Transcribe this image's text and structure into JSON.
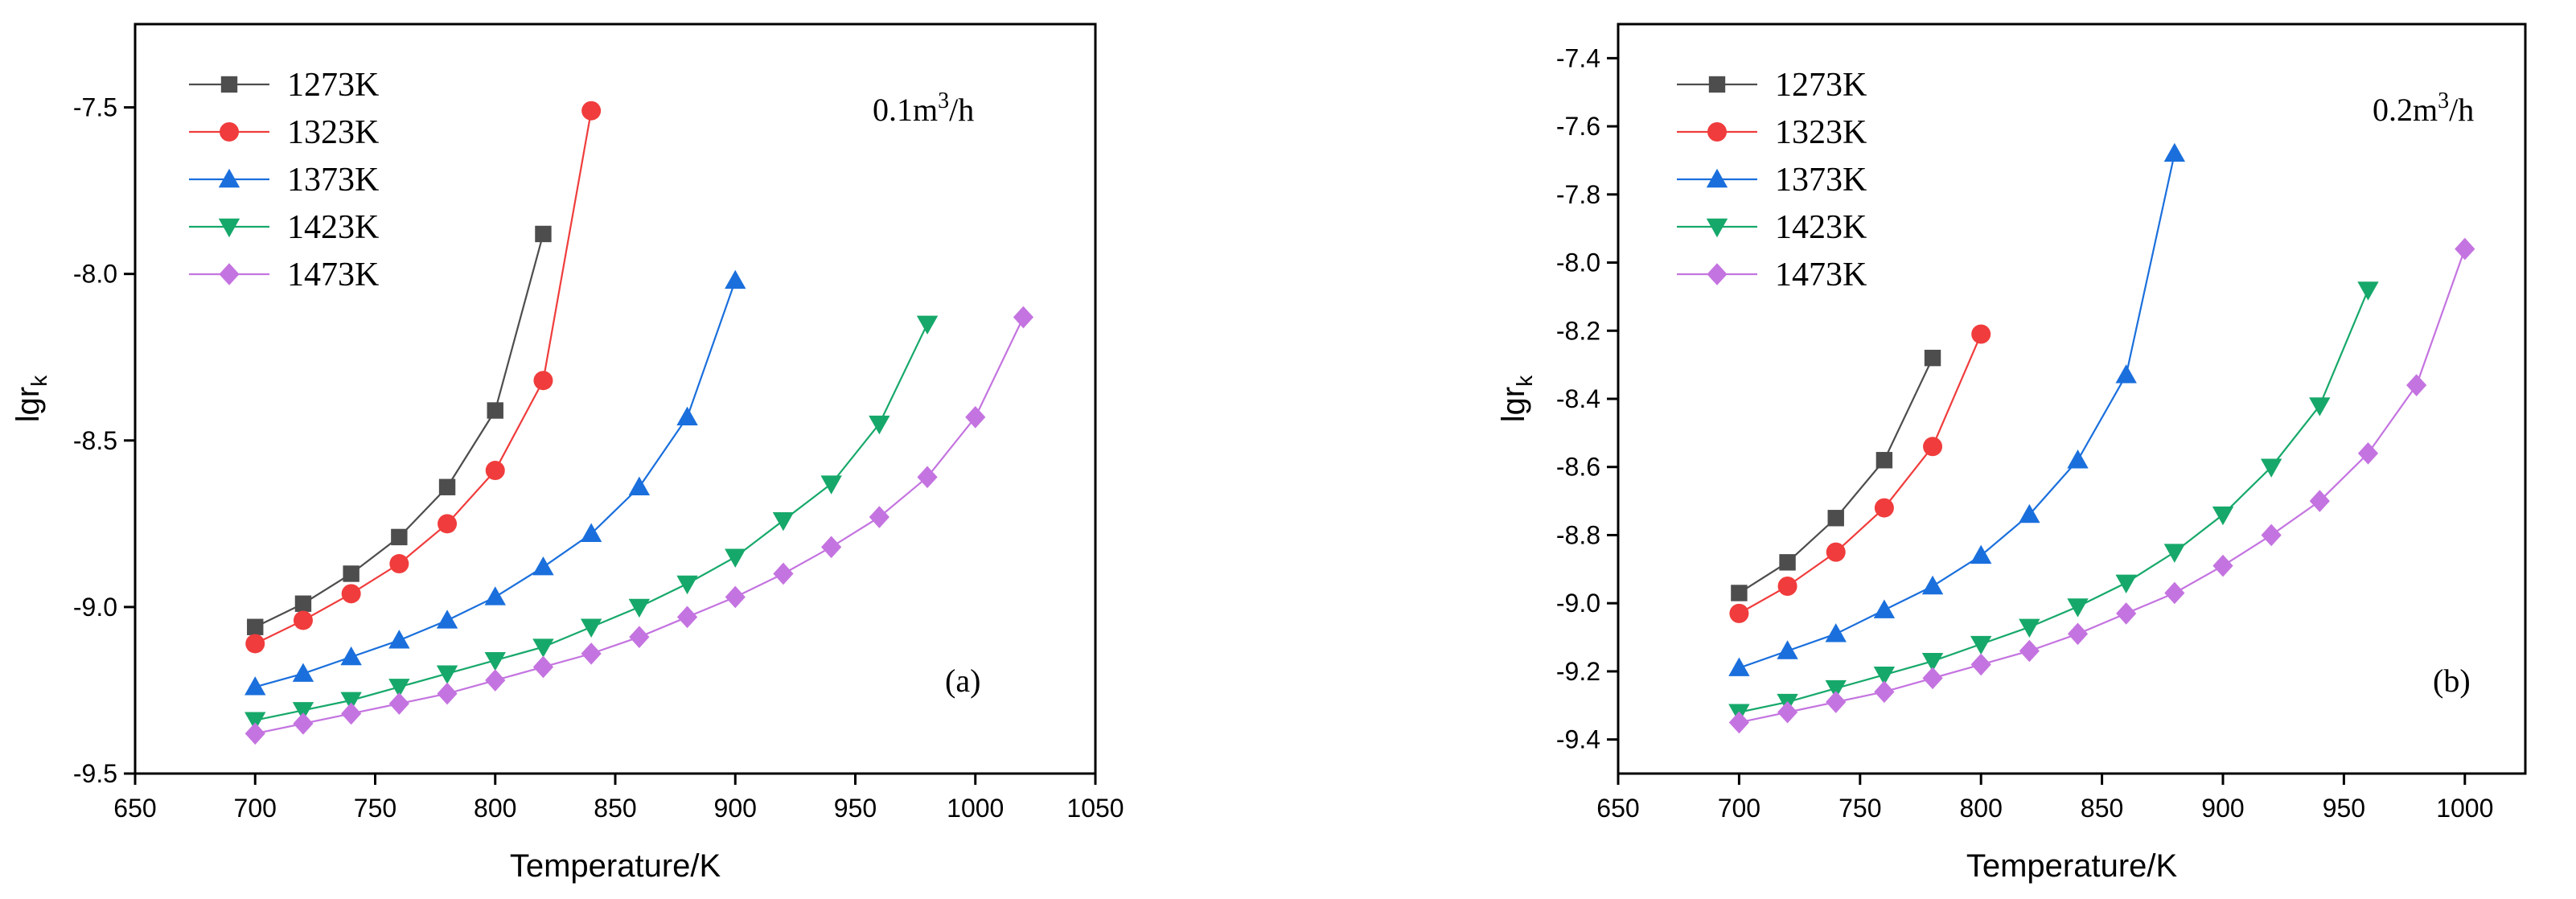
{
  "chart_data": [
    {
      "type": "line",
      "panel_label": "(a)",
      "annotation": {
        "base": "0.1m",
        "sup": "3",
        "tail": "/h"
      },
      "xlabel": "Temperature/K",
      "ylabel": {
        "base": "lgr",
        "sub": "k"
      },
      "xlim": [
        650,
        1050
      ],
      "ylim": [
        -9.5,
        -7.25
      ],
      "xticks": [
        650,
        700,
        750,
        800,
        850,
        900,
        950,
        1000,
        1050
      ],
      "yticks": [
        -9.5,
        -9.0,
        -8.5,
        -8.0,
        -7.5
      ],
      "ytick_labels": [
        "-9.5",
        "-9.0",
        "-8.5",
        "-8.0",
        "-7.5"
      ],
      "legend_position": "top-left",
      "series": [
        {
          "name": "1273K",
          "color": "#4d4d4d",
          "marker": "square",
          "x": [
            700,
            720,
            740,
            760,
            780,
            800,
            820
          ],
          "y": [
            -9.06,
            -8.99,
            -8.9,
            -8.79,
            -8.64,
            -8.41,
            -7.88
          ]
        },
        {
          "name": "1323K",
          "color": "#f03c3c",
          "marker": "circle",
          "x": [
            700,
            720,
            740,
            760,
            780,
            800,
            820,
            840
          ],
          "y": [
            -9.11,
            -9.04,
            -8.96,
            -8.87,
            -8.75,
            -8.59,
            -8.32,
            -7.51
          ]
        },
        {
          "name": "1373K",
          "color": "#1a6fdc",
          "marker": "triangle-up",
          "x": [
            700,
            720,
            740,
            760,
            780,
            800,
            820,
            840,
            860,
            880,
            900
          ],
          "y": [
            -9.24,
            -9.2,
            -9.15,
            -9.1,
            -9.04,
            -8.97,
            -8.88,
            -8.78,
            -8.64,
            -8.43,
            -8.02
          ]
        },
        {
          "name": "1423K",
          "color": "#16a86a",
          "marker": "triangle-down",
          "x": [
            700,
            720,
            740,
            760,
            780,
            800,
            820,
            840,
            860,
            880,
            900,
            920,
            940,
            960,
            980
          ],
          "y": [
            -9.34,
            -9.31,
            -9.28,
            -9.24,
            -9.2,
            -9.16,
            -9.12,
            -9.06,
            -9.0,
            -8.93,
            -8.85,
            -8.74,
            -8.63,
            -8.45,
            -8.15
          ]
        },
        {
          "name": "1473K",
          "color": "#c474e0",
          "marker": "diamond",
          "x": [
            700,
            720,
            740,
            760,
            780,
            800,
            820,
            840,
            860,
            880,
            900,
            920,
            940,
            960,
            980,
            1000,
            1020
          ],
          "y": [
            -9.38,
            -9.35,
            -9.32,
            -9.29,
            -9.26,
            -9.22,
            -9.18,
            -9.14,
            -9.09,
            -9.03,
            -8.97,
            -8.9,
            -8.82,
            -8.73,
            -8.61,
            -8.43,
            -8.13
          ]
        }
      ]
    },
    {
      "type": "line",
      "panel_label": "(b)",
      "annotation": {
        "base": "0.2m",
        "sup": "3",
        "tail": "/h"
      },
      "xlabel": "Temperature/K",
      "ylabel": {
        "base": "lgr",
        "sub": "k"
      },
      "xlim": [
        650,
        1025
      ],
      "ylim": [
        -9.5,
        -7.3
      ],
      "xticks": [
        650,
        700,
        750,
        800,
        850,
        900,
        950,
        1000
      ],
      "yticks": [
        -9.4,
        -9.2,
        -9.0,
        -8.8,
        -8.6,
        -8.4,
        -8.2,
        -8.0,
        -7.8,
        -7.6,
        -7.4
      ],
      "ytick_labels": [
        "-9.4",
        "-9.2",
        "-9.0",
        "-8.8",
        "-8.6",
        "-8.4",
        "-8.2",
        "-8.0",
        "-7.8",
        "-7.6",
        "-7.4"
      ],
      "legend_position": "top-left",
      "series": [
        {
          "name": "1273K",
          "color": "#4d4d4d",
          "marker": "square",
          "x": [
            700,
            720,
            740,
            760,
            780
          ],
          "y": [
            -8.97,
            -8.88,
            -8.75,
            -8.58,
            -8.28
          ]
        },
        {
          "name": "1323K",
          "color": "#f03c3c",
          "marker": "circle",
          "x": [
            700,
            720,
            740,
            760,
            780,
            800
          ],
          "y": [
            -9.03,
            -8.95,
            -8.85,
            -8.72,
            -8.54,
            -8.21
          ]
        },
        {
          "name": "1373K",
          "color": "#1a6fdc",
          "marker": "triangle-up",
          "x": [
            700,
            720,
            740,
            760,
            780,
            800,
            820,
            840,
            860,
            880
          ],
          "y": [
            -9.19,
            -9.14,
            -9.09,
            -9.02,
            -8.95,
            -8.86,
            -8.74,
            -8.58,
            -8.33,
            -7.68
          ]
        },
        {
          "name": "1423K",
          "color": "#16a86a",
          "marker": "triangle-down",
          "x": [
            700,
            720,
            740,
            760,
            780,
            800,
            820,
            840,
            860,
            880,
            900,
            920,
            940,
            960
          ],
          "y": [
            -9.32,
            -9.29,
            -9.25,
            -9.21,
            -9.17,
            -9.12,
            -9.07,
            -9.01,
            -8.94,
            -8.85,
            -8.74,
            -8.6,
            -8.42,
            -8.08
          ]
        },
        {
          "name": "1473K",
          "color": "#c474e0",
          "marker": "diamond",
          "x": [
            700,
            720,
            740,
            760,
            780,
            800,
            820,
            840,
            860,
            880,
            900,
            920,
            940,
            960,
            980,
            1000
          ],
          "y": [
            -9.35,
            -9.32,
            -9.29,
            -9.26,
            -9.22,
            -9.18,
            -9.14,
            -9.09,
            -9.03,
            -8.97,
            -8.89,
            -8.8,
            -8.7,
            -8.56,
            -8.36,
            -7.96
          ]
        }
      ]
    }
  ]
}
